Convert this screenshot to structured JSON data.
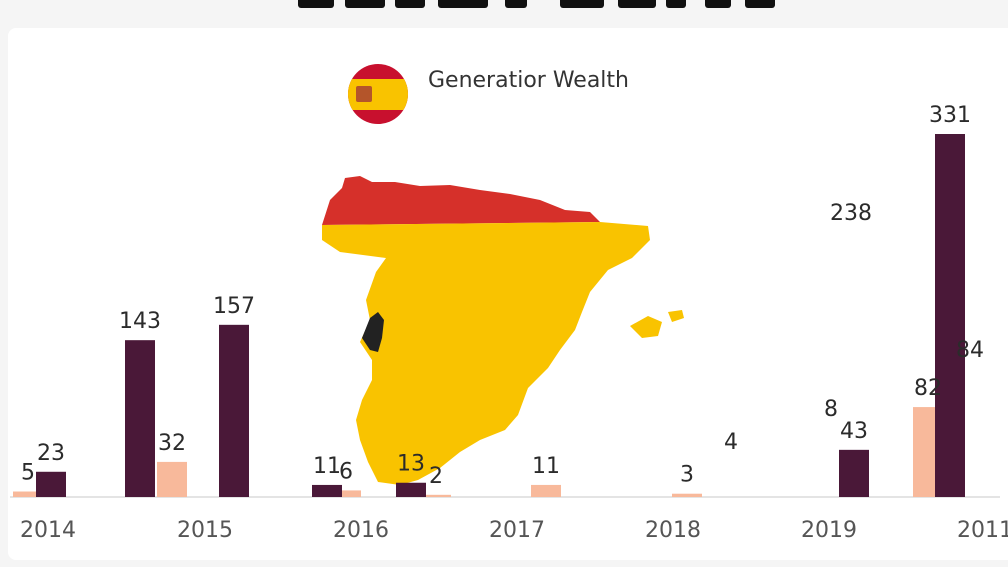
{
  "chart_data": {
    "type": "bar",
    "title": "Generatior Wealth",
    "categories": [
      "2014",
      "2015",
      "2016",
      "2017",
      "2018",
      "2019",
      "2011"
    ],
    "series": [
      {
        "values": [
          5,
          32,
          6,
          2,
          11,
          3,
          82
        ]
      },
      {
        "values": [
          23,
          143,
          157,
          11,
          13,
          43,
          331
        ]
      }
    ],
    "extra_labels": [
      "4",
      "8",
      "84",
      "238"
    ],
    "colors": {
      "dark": "#4a1838",
      "light": "#f8b99b"
    },
    "flag_icon": "spain-flag-icon",
    "map_icon": "spain-map-icon"
  }
}
